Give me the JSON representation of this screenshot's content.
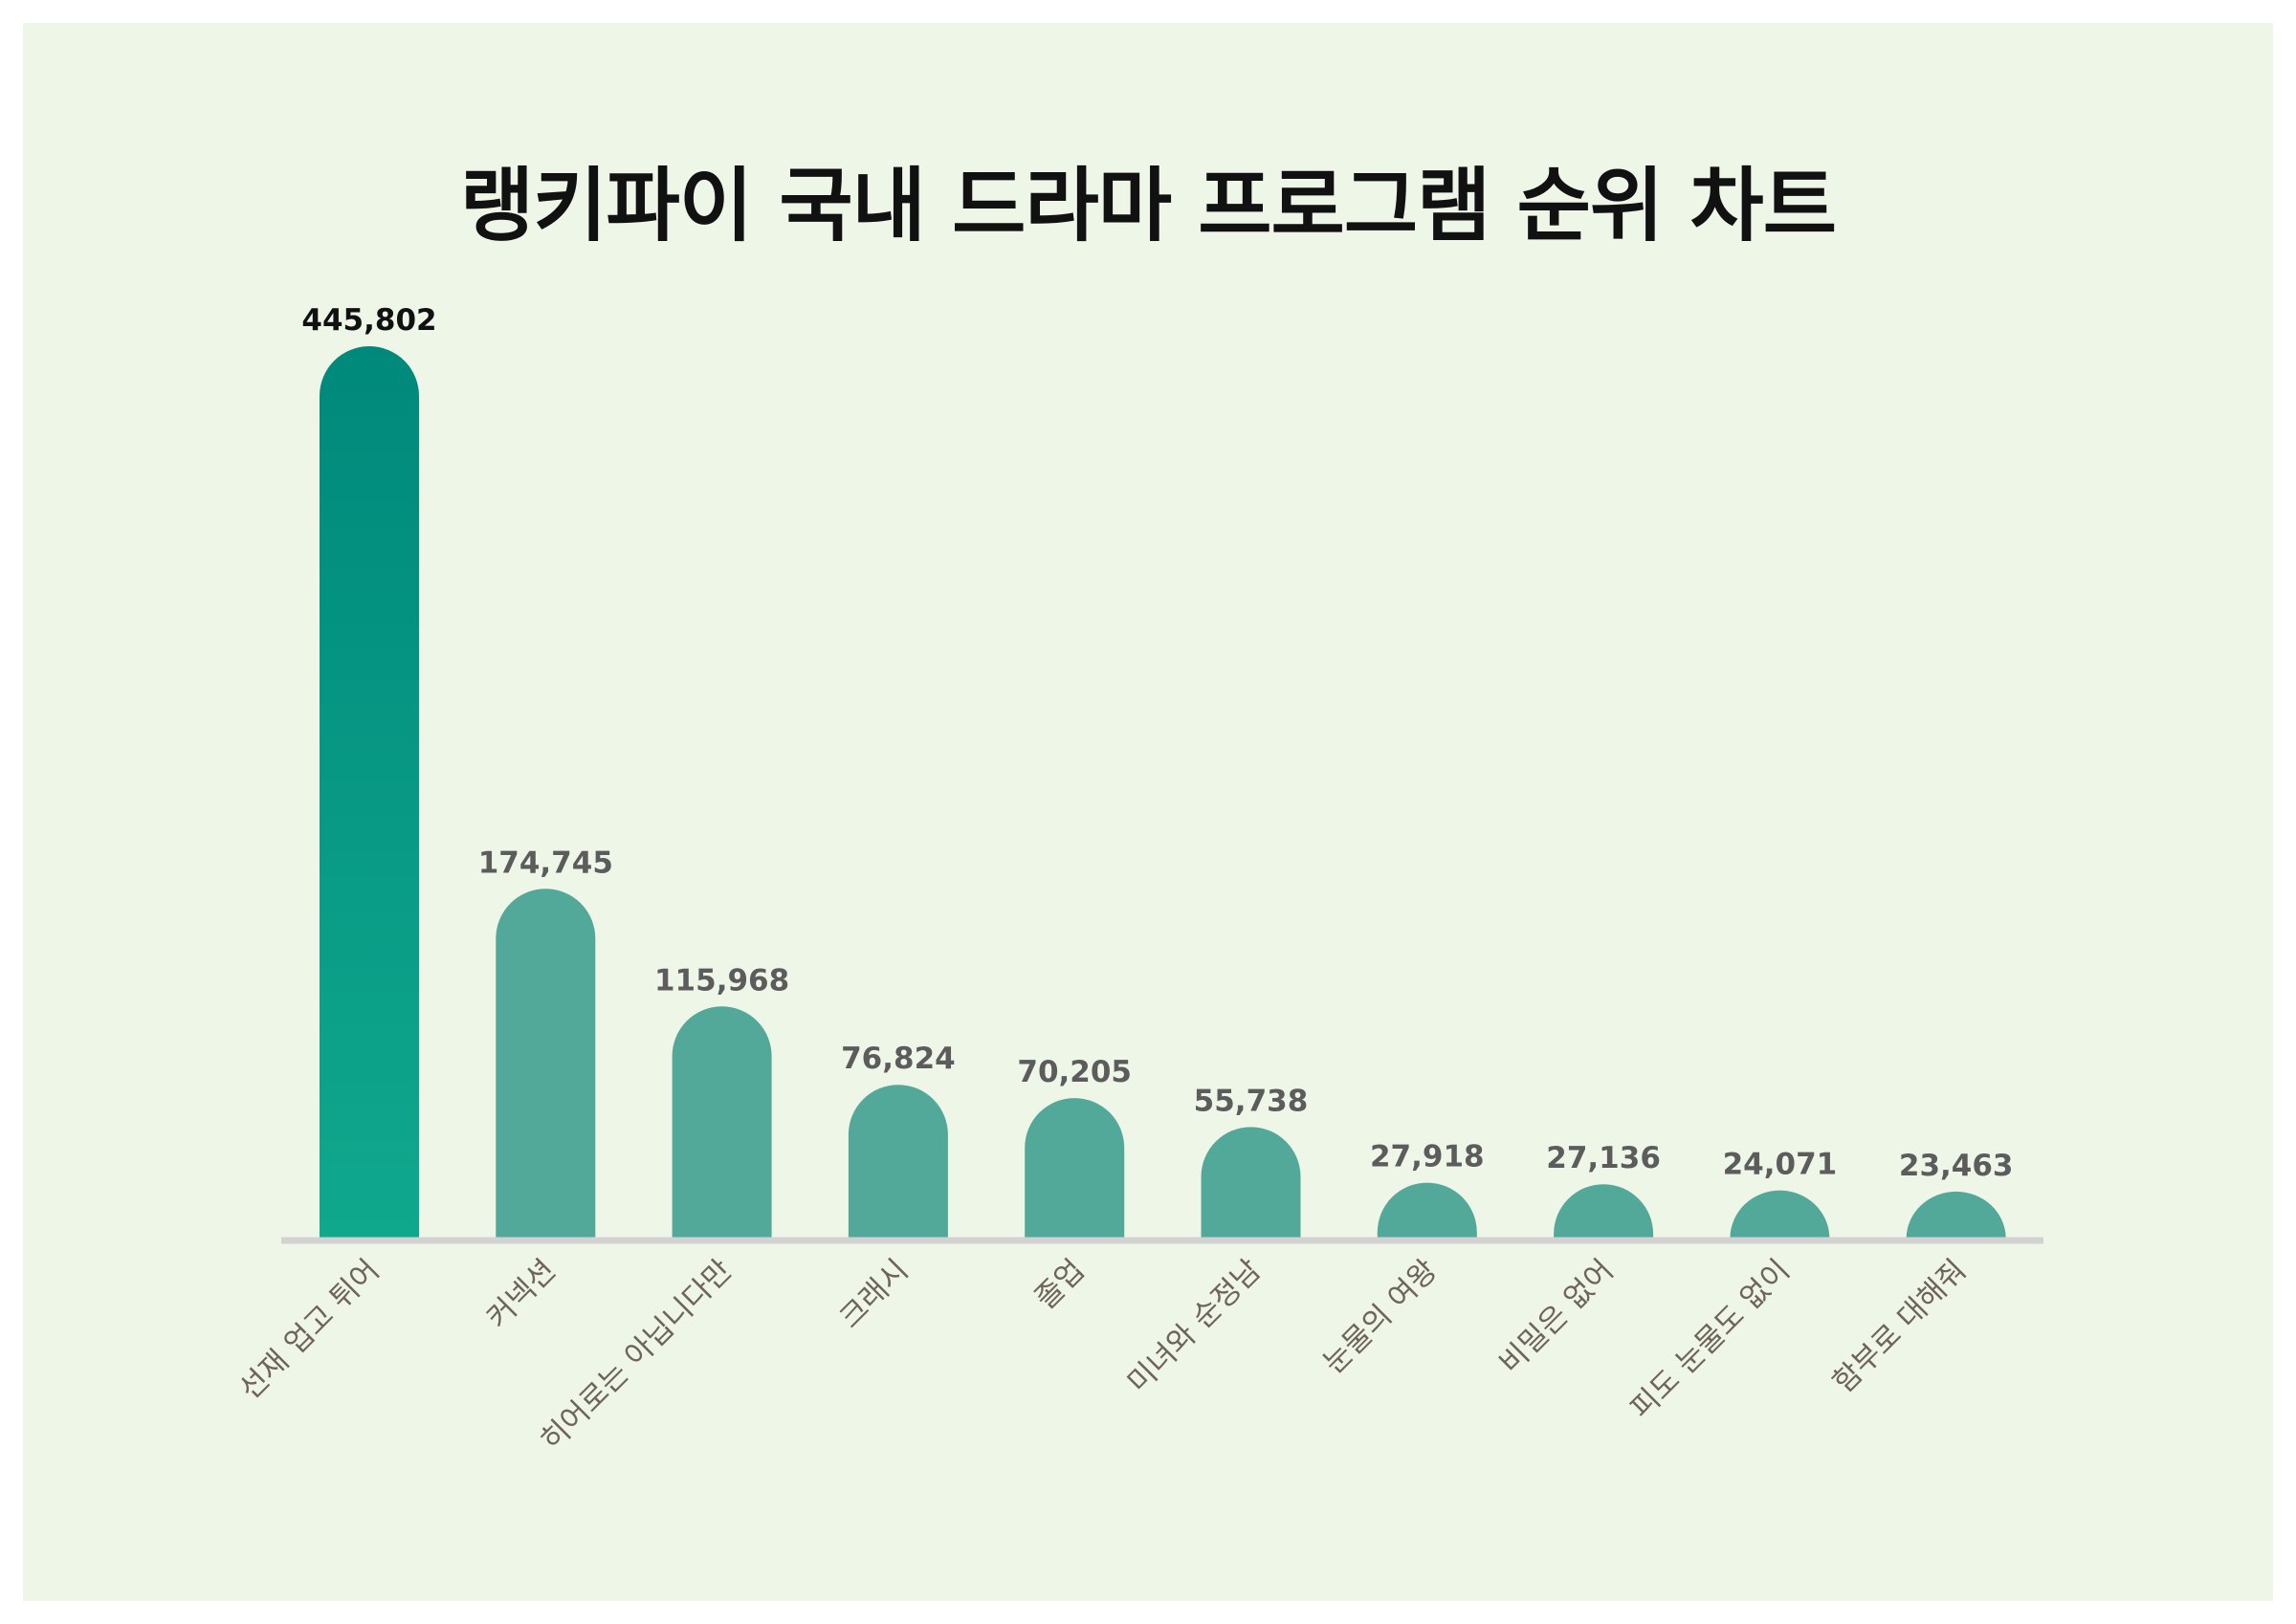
{
  "chart_data": {
    "type": "bar",
    "title": "랭키파이 국내 드라마 프로그램 순위 차트",
    "categories": [
      "선재 업고 튀어",
      "커넥션",
      "히어로는 아닙니다만",
      "크래시",
      "졸업",
      "미녀와 순정남",
      "눈물의 여왕",
      "비밀은 없어",
      "피도 눈물도 없이",
      "함부로 대해줘"
    ],
    "values": [
      445802,
      174745,
      115968,
      76824,
      70205,
      55738,
      27918,
      27136,
      24071,
      23463
    ],
    "value_labels": [
      "445,802",
      "174,745",
      "115,968",
      "76,824",
      "70,205",
      "55,738",
      "27,918",
      "27,136",
      "24,071",
      "23,463"
    ],
    "xlabel": "",
    "ylabel": "",
    "ylim": [
      0,
      445802
    ],
    "grid": false,
    "legend": "none",
    "colors": {
      "background": "#eef6e8",
      "top_bar_gradient_top": "#00897b",
      "top_bar_gradient_bottom": "#0fa88d",
      "bar": "#52a99a",
      "baseline": "#d2d2d2",
      "top_value_label": "#111111",
      "value_label": "#5c5c5c",
      "category_label": "#6f6458",
      "title": "#111111"
    }
  }
}
